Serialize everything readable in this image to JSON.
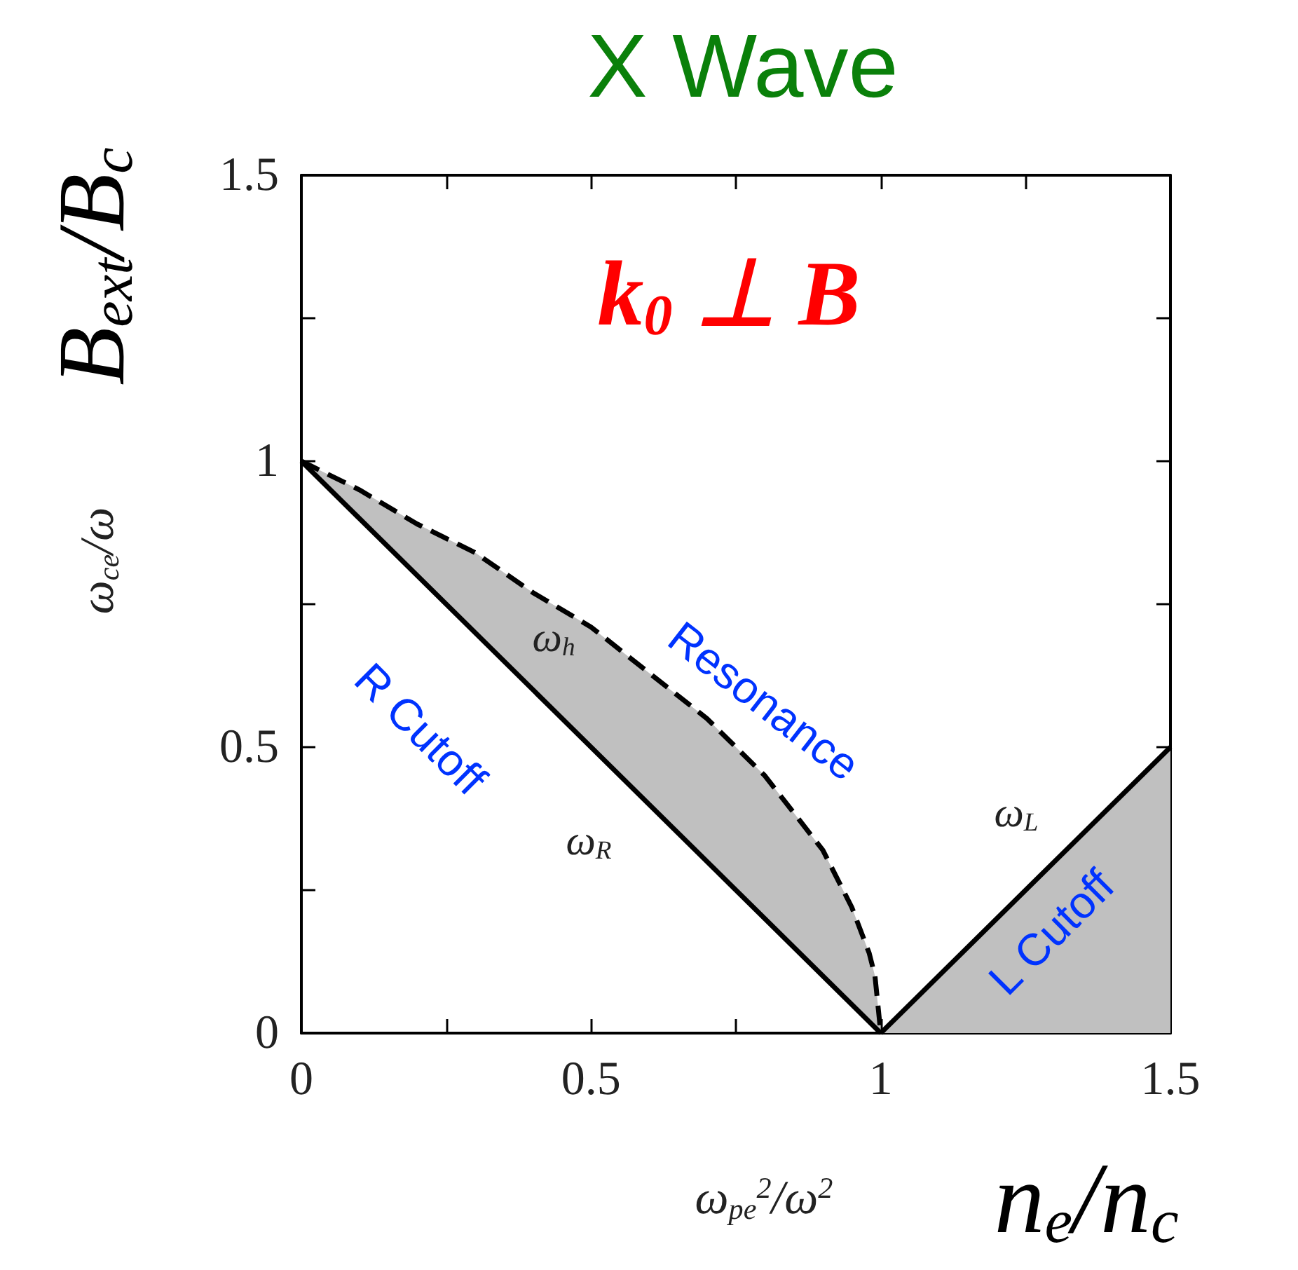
{
  "chart_data": {
    "type": "line",
    "title": "X Wave",
    "xlabel": "ω$_{pe}$$^{2}$/ω$^{2}$",
    "ylabel": "ω$_{ce}$/ω",
    "xlim": [
      0,
      1.5
    ],
    "ylim": [
      0,
      1.5
    ],
    "xticks": [
      0,
      {
        "value": 0.25,
        "label": null
      },
      0.5,
      {
        "value": 0.75,
        "label": null
      },
      1,
      {
        "value": 1.25,
        "label": null
      },
      1.5
    ],
    "yticks": [
      0,
      {
        "value": 0.25,
        "label": null
      },
      0.5,
      {
        "value": 0.75,
        "label": null
      },
      1,
      {
        "value": 1.25,
        "label": null
      },
      1.5
    ],
    "series": [
      {
        "color": "#000000",
        "line_style": "solid",
        "x": [
          0,
          1
        ],
        "values": [
          1,
          0
        ]
      },
      {
        "color": "#000000",
        "line_style": "dashed",
        "x": [
          0,
          0.1,
          0.2,
          0.3,
          0.4,
          0.5,
          0.6,
          0.7,
          0.8,
          0.9,
          0.95,
          0.98,
          0.99,
          1
        ],
        "values": [
          1,
          0.95,
          0.89,
          0.84,
          0.77,
          0.71,
          0.63,
          0.55,
          0.45,
          0.32,
          0.22,
          0.14,
          0.1,
          0
        ],
        "lower": [
          1,
          0.9,
          0.8,
          0.7,
          0.6,
          0.5,
          0.4,
          0.3,
          0.2,
          0.1,
          0.05,
          0.02,
          0.01,
          0
        ],
        "upper": [
          1,
          0.95,
          0.89,
          0.84,
          0.77,
          0.71,
          0.63,
          0.55,
          0.45,
          0.32,
          0.22,
          0.14,
          0.1,
          0
        ]
      },
      {
        "color": "#000000",
        "line_style": "solid",
        "x": [
          1,
          1.5
        ],
        "values": [
          0,
          0.5
        ],
        "lower": [
          0,
          0
        ],
        "upper": [
          0,
          0.5
        ]
      }
    ],
    "annotations": [
      "k$_{0}$ ⊥ B",
      "B$_{ext}$/B$_{c}$",
      "n$_{e}$/n$_{c}$",
      "ω$_{h}$",
      "ω$_{R}$",
      "ω$_{L}$",
      "R Cutoff",
      "Resonance",
      "L Cutoff"
    ]
  }
}
